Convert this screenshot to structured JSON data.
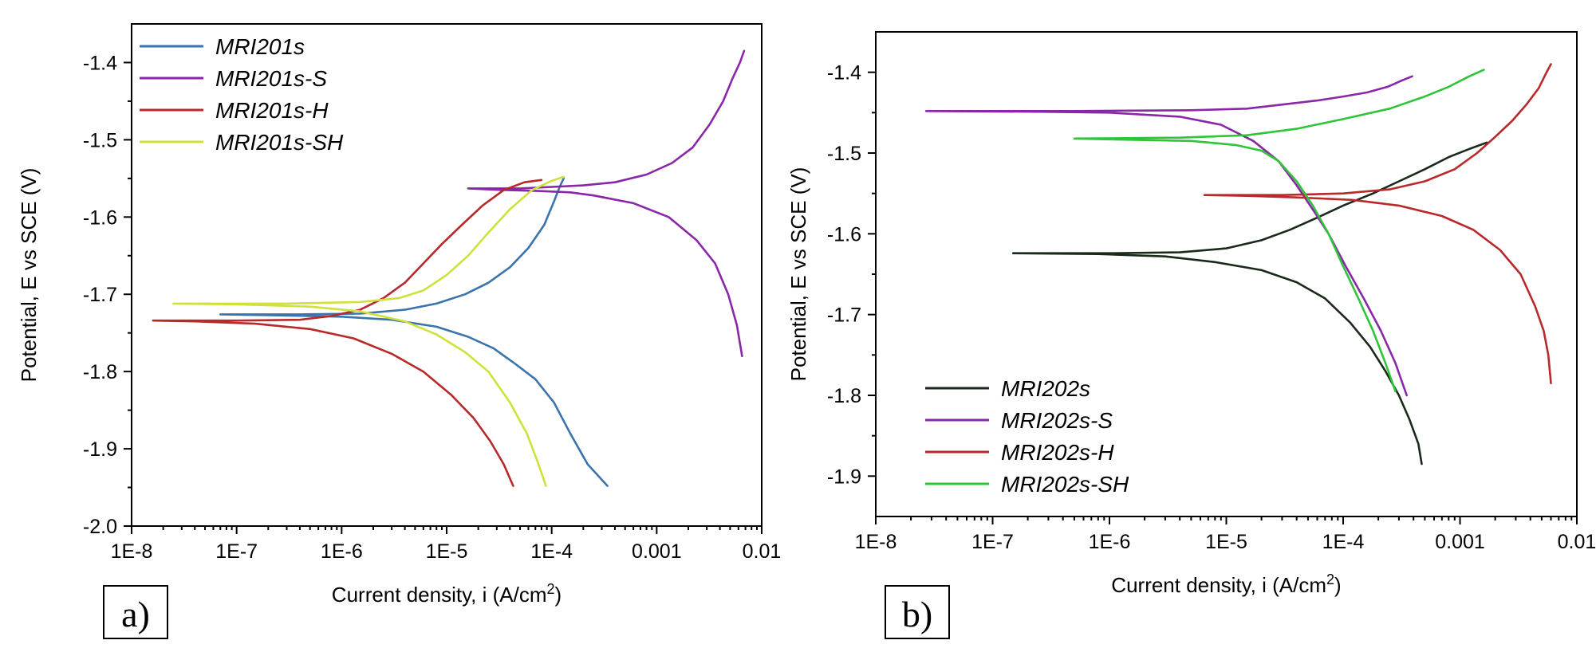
{
  "figure": {
    "chart_data": [
      {
        "type": "line",
        "panel_label": "a)",
        "xlabel": "Current density, i (A/cm",
        "xlabel_sup": "2",
        "xlabel_end": ")",
        "ylabel": "Potential, E vs SCE (V)",
        "x_scale": "log",
        "xlim": [
          1e-08,
          0.01
        ],
        "ylim": [
          -2.0,
          -1.35
        ],
        "x_ticks": [
          1e-08,
          1e-07,
          1e-06,
          1e-05,
          0.0001,
          0.001,
          0.01
        ],
        "x_tick_labels": [
          "1E-8",
          "1E-7",
          "1E-6",
          "1E-5",
          "1E-4",
          "0.001",
          "0.01"
        ],
        "y_ticks": [
          -1.4,
          -1.5,
          -1.6,
          -1.7,
          -1.8,
          -1.9,
          -2.0
        ],
        "y_tick_labels": [
          "-1.4",
          "-1.5",
          "-1.6",
          "-1.7",
          "-1.8",
          "-1.9",
          "-2.0"
        ],
        "legend_position": "top-left",
        "series": [
          {
            "name": "MRI201s",
            "color": "#3a73ad",
            "cathodic": [
              [
                0.00034,
                -1.948
              ],
              [
                0.00022,
                -1.92
              ],
              [
                0.00015,
                -1.88
              ],
              [
                0.000105,
                -1.84
              ],
              [
                7e-05,
                -1.81
              ],
              [
                4.5e-05,
                -1.79
              ],
              [
                2.8e-05,
                -1.77
              ],
              [
                1.6e-05,
                -1.755
              ],
              [
                8e-06,
                -1.742
              ],
              [
                3e-06,
                -1.733
              ],
              [
                1e-06,
                -1.729
              ],
              [
                2e-07,
                -1.727
              ],
              [
                7e-08,
                -1.726
              ]
            ],
            "anodic": [
              [
                7e-08,
                -1.726
              ],
              [
                4e-07,
                -1.726
              ],
              [
                1.5e-06,
                -1.725
              ],
              [
                4e-06,
                -1.72
              ],
              [
                8e-06,
                -1.712
              ],
              [
                1.5e-05,
                -1.7
              ],
              [
                2.5e-05,
                -1.685
              ],
              [
                4e-05,
                -1.665
              ],
              [
                6e-05,
                -1.64
              ],
              [
                8.5e-05,
                -1.61
              ],
              [
                0.000105,
                -1.58
              ],
              [
                0.00012,
                -1.56
              ],
              [
                0.00013,
                -1.55
              ]
            ]
          },
          {
            "name": "MRI201s-S",
            "color": "#8a26a8",
            "cathodic": [
              [
                0.0065,
                -1.78
              ],
              [
                0.0058,
                -1.74
              ],
              [
                0.0048,
                -1.7
              ],
              [
                0.0036,
                -1.66
              ],
              [
                0.0024,
                -1.63
              ],
              [
                0.0013,
                -1.6
              ],
              [
                0.0006,
                -1.582
              ],
              [
                0.00025,
                -1.572
              ],
              [
                0.00015,
                -1.568
              ],
              [
                7e-05,
                -1.566
              ],
              [
                3.5e-05,
                -1.565
              ],
              [
                1.6e-05,
                -1.563
              ]
            ],
            "anodic": [
              [
                1.6e-05,
                -1.563
              ],
              [
                5e-05,
                -1.563
              ],
              [
                0.0001,
                -1.561
              ],
              [
                0.0002,
                -1.559
              ],
              [
                0.0004,
                -1.555
              ],
              [
                0.0008,
                -1.545
              ],
              [
                0.0014,
                -1.53
              ],
              [
                0.0022,
                -1.51
              ],
              [
                0.0032,
                -1.48
              ],
              [
                0.0043,
                -1.45
              ],
              [
                0.0053,
                -1.42
              ],
              [
                0.0062,
                -1.4
              ],
              [
                0.0068,
                -1.385
              ]
            ]
          },
          {
            "name": "MRI201s-H",
            "color": "#b82a2a",
            "cathodic": [
              [
                4.3e-05,
                -1.948
              ],
              [
                3.5e-05,
                -1.92
              ],
              [
                2.6e-05,
                -1.89
              ],
              [
                1.8e-05,
                -1.86
              ],
              [
                1.1e-05,
                -1.83
              ],
              [
                6e-06,
                -1.8
              ],
              [
                3e-06,
                -1.777
              ],
              [
                1.3e-06,
                -1.757
              ],
              [
                5e-07,
                -1.745
              ],
              [
                1.5e-07,
                -1.738
              ],
              [
                4e-08,
                -1.735
              ],
              [
                1.6e-08,
                -1.734
              ]
            ],
            "anodic": [
              [
                1.6e-08,
                -1.734
              ],
              [
                1e-07,
                -1.734
              ],
              [
                4e-07,
                -1.733
              ],
              [
                8e-07,
                -1.728
              ],
              [
                1.5e-06,
                -1.72
              ],
              [
                2.5e-06,
                -1.705
              ],
              [
                4e-06,
                -1.685
              ],
              [
                6e-06,
                -1.66
              ],
              [
                9e-06,
                -1.635
              ],
              [
                1.4e-05,
                -1.61
              ],
              [
                2.2e-05,
                -1.585
              ],
              [
                3.5e-05,
                -1.565
              ],
              [
                5.5e-05,
                -1.555
              ],
              [
                8e-05,
                -1.552
              ]
            ]
          },
          {
            "name": "MRI201s-SH",
            "color": "#cfe23a",
            "cathodic": [
              [
                8.8e-05,
                -1.948
              ],
              [
                7.5e-05,
                -1.92
              ],
              [
                5.8e-05,
                -1.88
              ],
              [
                4e-05,
                -1.84
              ],
              [
                2.5e-05,
                -1.8
              ],
              [
                1.5e-05,
                -1.775
              ],
              [
                8e-06,
                -1.752
              ],
              [
                4e-06,
                -1.735
              ],
              [
                1.5e-06,
                -1.722
              ],
              [
                5e-07,
                -1.716
              ],
              [
                1e-07,
                -1.713
              ],
              [
                2.5e-08,
                -1.712
              ]
            ],
            "anodic": [
              [
                2.5e-08,
                -1.712
              ],
              [
                3e-07,
                -1.712
              ],
              [
                1.5e-06,
                -1.71
              ],
              [
                3.5e-06,
                -1.705
              ],
              [
                6e-06,
                -1.695
              ],
              [
                1e-05,
                -1.675
              ],
              [
                1.6e-05,
                -1.65
              ],
              [
                2.5e-05,
                -1.62
              ],
              [
                4e-05,
                -1.59
              ],
              [
                6.5e-05,
                -1.565
              ],
              [
                0.0001,
                -1.553
              ],
              [
                0.00013,
                -1.548
              ]
            ]
          }
        ]
      },
      {
        "type": "line",
        "panel_label": "b)",
        "xlabel": "Current density, i (A/cm",
        "xlabel_sup": "2",
        "xlabel_end": ")",
        "ylabel": "Potential, E vs SCE (V)",
        "x_scale": "log",
        "xlim": [
          1e-08,
          0.01
        ],
        "ylim": [
          -1.95,
          -1.35
        ],
        "x_ticks": [
          1e-08,
          1e-07,
          1e-06,
          1e-05,
          0.0001,
          0.001,
          0.01
        ],
        "x_tick_labels": [
          "1E-8",
          "1E-7",
          "1E-6",
          "1E-5",
          "1E-4",
          "0.001",
          "0.01"
        ],
        "y_ticks": [
          -1.4,
          -1.5,
          -1.6,
          -1.7,
          -1.8,
          -1.9
        ],
        "y_tick_labels": [
          "-1.4",
          "-1.5",
          "-1.6",
          "-1.7",
          "-1.8",
          "-1.9"
        ],
        "legend_position": "bottom-left",
        "series": [
          {
            "name": "MRI202s",
            "color": "#1a2a1a",
            "cathodic": [
              [
                0.00047,
                -1.885
              ],
              [
                0.00044,
                -1.86
              ],
              [
                0.00037,
                -1.83
              ],
              [
                0.0003,
                -1.8
              ],
              [
                0.00023,
                -1.77
              ],
              [
                0.00017,
                -1.74
              ],
              [
                0.000115,
                -1.71
              ],
              [
                7e-05,
                -1.68
              ],
              [
                4e-05,
                -1.66
              ],
              [
                2e-05,
                -1.645
              ],
              [
                8e-06,
                -1.635
              ],
              [
                3e-06,
                -1.628
              ],
              [
                8e-07,
                -1.625
              ],
              [
                1.5e-07,
                -1.624
              ]
            ],
            "anodic": [
              [
                1.5e-07,
                -1.624
              ],
              [
                1e-06,
                -1.624
              ],
              [
                4e-06,
                -1.623
              ],
              [
                1e-05,
                -1.618
              ],
              [
                2e-05,
                -1.608
              ],
              [
                3.5e-05,
                -1.595
              ],
              [
                6e-05,
                -1.58
              ],
              [
                0.0001,
                -1.565
              ],
              [
                0.00018,
                -1.55
              ],
              [
                0.0003,
                -1.535
              ],
              [
                0.0005,
                -1.52
              ],
              [
                0.0008,
                -1.505
              ],
              [
                0.0012,
                -1.495
              ],
              [
                0.0017,
                -1.487
              ]
            ]
          },
          {
            "name": "MRI202s-S",
            "color": "#8a26a8",
            "cathodic": [
              [
                0.00035,
                -1.8
              ],
              [
                0.00028,
                -1.76
              ],
              [
                0.00021,
                -1.72
              ],
              [
                0.00015,
                -1.68
              ],
              [
                0.000105,
                -1.64
              ],
              [
                7.5e-05,
                -1.6
              ],
              [
                5.5e-05,
                -1.57
              ],
              [
                4e-05,
                -1.54
              ],
              [
                2.8e-05,
                -1.51
              ],
              [
                1.7e-05,
                -1.485
              ],
              [
                9e-06,
                -1.465
              ],
              [
                4e-06,
                -1.455
              ],
              [
                1e-06,
                -1.45
              ],
              [
                3e-07,
                -1.449
              ],
              [
                2.7e-08,
                -1.448
              ]
            ],
            "anodic": [
              [
                2.7e-08,
                -1.448
              ],
              [
                5e-07,
                -1.448
              ],
              [
                5e-06,
                -1.447
              ],
              [
                1.5e-05,
                -1.445
              ],
              [
                3e-05,
                -1.44
              ],
              [
                6e-05,
                -1.435
              ],
              [
                0.0001,
                -1.43
              ],
              [
                0.00016,
                -1.425
              ],
              [
                0.00024,
                -1.418
              ],
              [
                0.00032,
                -1.41
              ],
              [
                0.00039,
                -1.405
              ]
            ]
          },
          {
            "name": "MRI202s-H",
            "color": "#b82a2a",
            "cathodic": [
              [
                0.006,
                -1.785
              ],
              [
                0.0057,
                -1.75
              ],
              [
                0.0052,
                -1.72
              ],
              [
                0.0044,
                -1.69
              ],
              [
                0.0033,
                -1.65
              ],
              [
                0.0022,
                -1.62
              ],
              [
                0.0013,
                -1.595
              ],
              [
                0.0007,
                -1.578
              ],
              [
                0.0003,
                -1.565
              ],
              [
                0.00012,
                -1.558
              ],
              [
                4e-05,
                -1.555
              ],
              [
                1.5e-05,
                -1.553
              ],
              [
                6.5e-06,
                -1.552
              ]
            ],
            "anodic": [
              [
                6.5e-06,
                -1.552
              ],
              [
                3e-05,
                -1.552
              ],
              [
                0.0001,
                -1.55
              ],
              [
                0.00025,
                -1.545
              ],
              [
                0.0005,
                -1.535
              ],
              [
                0.0009,
                -1.52
              ],
              [
                0.0014,
                -1.5
              ],
              [
                0.002,
                -1.48
              ],
              [
                0.0028,
                -1.46
              ],
              [
                0.0037,
                -1.44
              ],
              [
                0.0047,
                -1.42
              ],
              [
                0.0055,
                -1.4
              ],
              [
                0.006,
                -1.39
              ]
            ]
          },
          {
            "name": "MRI202s-SH",
            "color": "#30c43a",
            "cathodic": [
              [
                0.00028,
                -1.795
              ],
              [
                0.00023,
                -1.76
              ],
              [
                0.00018,
                -1.72
              ],
              [
                0.000135,
                -1.68
              ],
              [
                0.0001,
                -1.64
              ],
              [
                7.5e-05,
                -1.6
              ],
              [
                5.5e-05,
                -1.565
              ],
              [
                4e-05,
                -1.535
              ],
              [
                2.8e-05,
                -1.51
              ],
              [
                2e-05,
                -1.497
              ],
              [
                1.2e-05,
                -1.49
              ],
              [
                5e-06,
                -1.485
              ],
              [
                1e-06,
                -1.483
              ],
              [
                5e-07,
                -1.482
              ]
            ],
            "anodic": [
              [
                5e-07,
                -1.482
              ],
              [
                4e-06,
                -1.481
              ],
              [
                1.5e-05,
                -1.478
              ],
              [
                4e-05,
                -1.47
              ],
              [
                0.0001,
                -1.458
              ],
              [
                0.00025,
                -1.445
              ],
              [
                0.0005,
                -1.43
              ],
              [
                0.0008,
                -1.418
              ],
              [
                0.0012,
                -1.405
              ],
              [
                0.0016,
                -1.397
              ]
            ]
          }
        ]
      }
    ]
  }
}
